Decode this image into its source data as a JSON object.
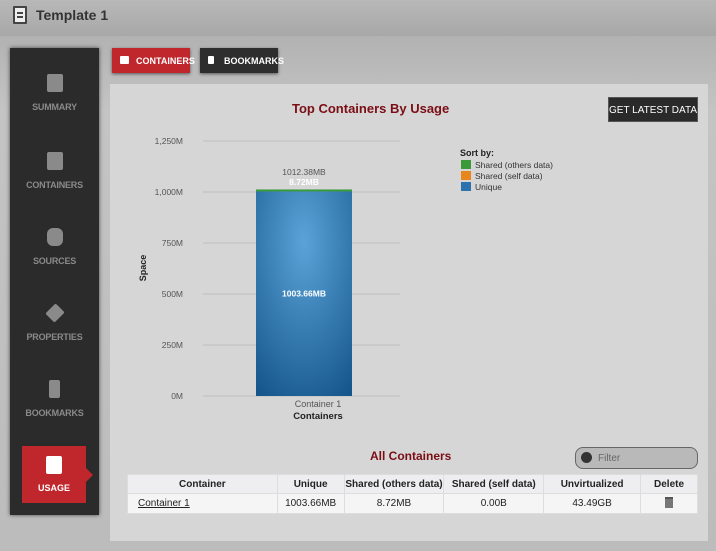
{
  "header": {
    "title": "Template 1"
  },
  "sidebar": {
    "items": [
      {
        "label": "SUMMARY",
        "icon": "document-icon"
      },
      {
        "label": "CONTAINERS",
        "icon": "container-icon"
      },
      {
        "label": "SOURCES",
        "icon": "database-icon"
      },
      {
        "label": "PROPERTIES",
        "icon": "layers-icon"
      },
      {
        "label": "BOOKMARKS",
        "icon": "bookmark-icon"
      },
      {
        "label": "USAGE",
        "icon": "usage-icon",
        "active": true
      }
    ]
  },
  "tabs": [
    {
      "label": "CONTAINERS",
      "active": true,
      "color": "#c0272d"
    },
    {
      "label": "BOOKMARKS",
      "active": false
    }
  ],
  "get_latest": "GET LATEST DATA",
  "chart_data": {
    "type": "bar",
    "stacked": true,
    "title": "Top Containers By Usage",
    "xlabel": "Containers",
    "ylabel": "Space",
    "categories": [
      "Container 1"
    ],
    "ylim": [
      0,
      1250
    ],
    "yticks": [
      "0M",
      "250M",
      "500M",
      "750M",
      "1,000M",
      "1,250M"
    ],
    "legend_title": "Sort by:",
    "legend_position": "right",
    "series": [
      {
        "name": "Unique",
        "values": [
          1003.66
        ],
        "color": "#2c72ae",
        "label": "1003.66MB"
      },
      {
        "name": "Shared (self data)",
        "values": [
          0
        ],
        "color": "#e8861e"
      },
      {
        "name": "Shared (others data)",
        "values": [
          8.72
        ],
        "color": "#3a9a3a",
        "label": "8.72MB"
      }
    ],
    "total_label": "1012.38MB",
    "grid": true
  },
  "table": {
    "title": "All Containers",
    "filter_placeholder": "Filter",
    "columns": [
      "Container",
      "Unique",
      "Shared (others data)",
      "Shared (self data)",
      "Unvirtualized",
      "Delete"
    ],
    "rows": [
      [
        "Container 1",
        "1003.66MB",
        "8.72MB",
        "0.00B",
        "43.49GB"
      ]
    ]
  }
}
